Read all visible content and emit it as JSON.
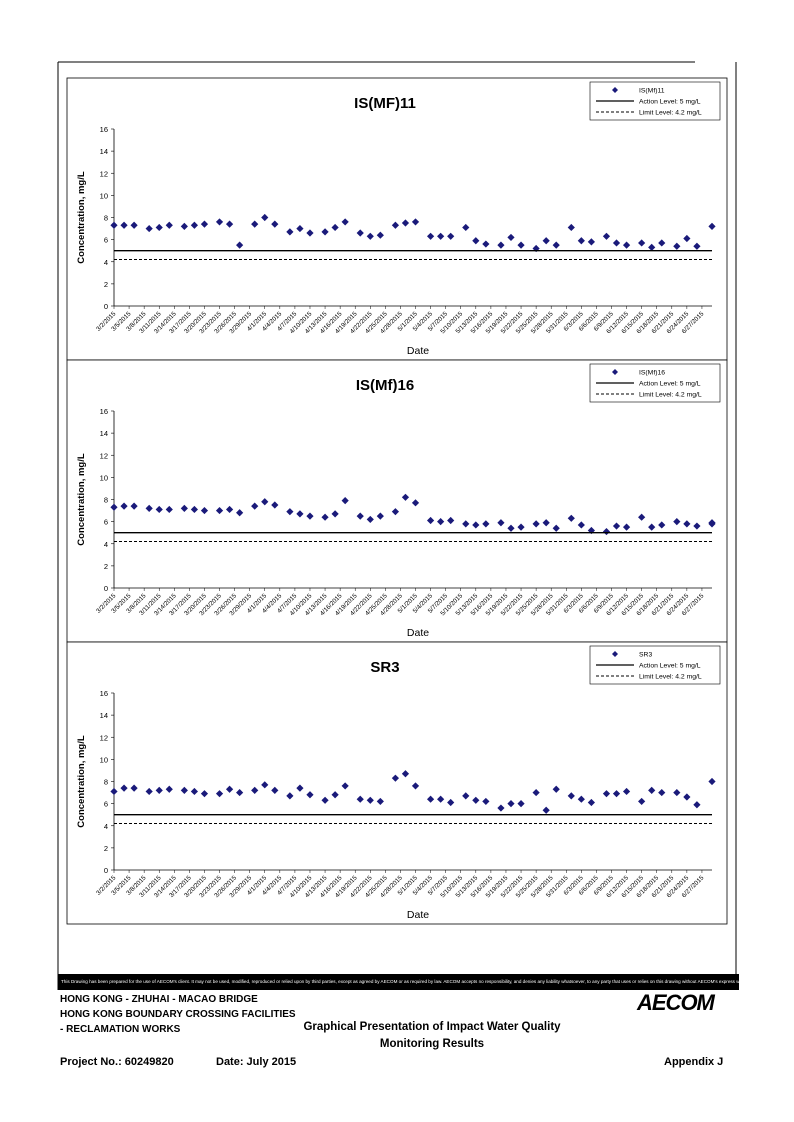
{
  "x_dates": [
    "3/2/2015",
    "3/5/2015",
    "3/8/2015",
    "3/11/2015",
    "3/14/2015",
    "3/17/2015",
    "3/20/2015",
    "3/23/2015",
    "3/26/2015",
    "3/29/2015",
    "4/1/2015",
    "4/4/2015",
    "4/7/2015",
    "4/10/2015",
    "4/13/2015",
    "4/16/2015",
    "4/19/2015",
    "4/22/2015",
    "4/25/2015",
    "4/28/2015",
    "5/1/2015",
    "5/4/2015",
    "5/7/2015",
    "5/10/2015",
    "5/13/2015",
    "5/16/2015",
    "5/19/2015",
    "5/22/2015",
    "5/25/2015",
    "5/28/2015",
    "5/31/2015",
    "6/3/2015",
    "6/6/2015",
    "6/9/2015",
    "6/12/2015",
    "6/15/2015",
    "6/18/2015",
    "6/21/2015",
    "6/24/2015",
    "6/27/2015"
  ],
  "colors": {
    "marker": "#1a1a7a",
    "line": "#000000"
  },
  "chart_data": [
    {
      "type": "scatter",
      "title": "IS(MF)11",
      "xlabel": "Date",
      "ylabel": "Concentration, mg/L",
      "ylim": [
        0,
        16
      ],
      "yticks": [
        0,
        2,
        4,
        6,
        8,
        10,
        12,
        14,
        16
      ],
      "xlim": [
        "3/2/2015",
        "6/29/2015"
      ],
      "legend_position": "top-right",
      "series": [
        {
          "name": "IS(Mf)11",
          "kind": "marker",
          "points": [
            [
              "3/2/2015",
              7.3
            ],
            [
              "3/4/2015",
              7.3
            ],
            [
              "3/6/2015",
              7.3
            ],
            [
              "3/9/2015",
              7.0
            ],
            [
              "3/11/2015",
              7.1
            ],
            [
              "3/13/2015",
              7.3
            ],
            [
              "3/16/2015",
              7.2
            ],
            [
              "3/18/2015",
              7.3
            ],
            [
              "3/20/2015",
              7.4
            ],
            [
              "3/23/2015",
              7.6
            ],
            [
              "3/25/2015",
              7.4
            ],
            [
              "3/27/2015",
              5.5
            ],
            [
              "3/30/2015",
              7.4
            ],
            [
              "4/1/2015",
              8.0
            ],
            [
              "4/3/2015",
              7.4
            ],
            [
              "4/6/2015",
              6.7
            ],
            [
              "4/8/2015",
              7.0
            ],
            [
              "4/10/2015",
              6.6
            ],
            [
              "4/13/2015",
              6.7
            ],
            [
              "4/15/2015",
              7.1
            ],
            [
              "4/17/2015",
              7.6
            ],
            [
              "4/20/2015",
              6.6
            ],
            [
              "4/22/2015",
              6.3
            ],
            [
              "4/24/2015",
              6.4
            ],
            [
              "4/27/2015",
              7.3
            ],
            [
              "4/29/2015",
              7.5
            ],
            [
              "5/1/2015",
              7.6
            ],
            [
              "5/4/2015",
              6.3
            ],
            [
              "5/6/2015",
              6.3
            ],
            [
              "5/8/2015",
              6.3
            ],
            [
              "5/11/2015",
              7.1
            ],
            [
              "5/13/2015",
              5.9
            ],
            [
              "5/15/2015",
              5.6
            ],
            [
              "5/18/2015",
              5.5
            ],
            [
              "5/20/2015",
              6.2
            ],
            [
              "5/22/2015",
              5.5
            ],
            [
              "5/25/2015",
              5.2
            ],
            [
              "5/27/2015",
              5.9
            ],
            [
              "5/29/2015",
              5.5
            ],
            [
              "6/1/2015",
              7.1
            ],
            [
              "6/3/2015",
              5.9
            ],
            [
              "6/5/2015",
              5.8
            ],
            [
              "6/8/2015",
              6.3
            ],
            [
              "6/10/2015",
              5.7
            ],
            [
              "6/12/2015",
              5.5
            ],
            [
              "6/15/2015",
              5.7
            ],
            [
              "6/17/2015",
              5.3
            ],
            [
              "6/19/2015",
              5.7
            ],
            [
              "6/22/2015",
              5.4
            ],
            [
              "6/24/2015",
              6.1
            ],
            [
              "6/26/2015",
              5.4
            ],
            [
              "6/29/2015",
              7.2
            ]
          ]
        },
        {
          "name": "Action Level: 5 mg/L",
          "kind": "hline",
          "y": 5
        },
        {
          "name": "Limit Level: 4.2 mg/L",
          "kind": "hline-dashed",
          "y": 4.2
        }
      ]
    },
    {
      "type": "scatter",
      "title": "IS(Mf)16",
      "xlabel": "Date",
      "ylabel": "Concentration, mg/L",
      "ylim": [
        0,
        16
      ],
      "yticks": [
        0,
        2,
        4,
        6,
        8,
        10,
        12,
        14,
        16
      ],
      "xlim": [
        "3/2/2015",
        "6/29/2015"
      ],
      "legend_position": "top-right",
      "series": [
        {
          "name": "IS(Mf)16",
          "kind": "marker",
          "points": [
            [
              "3/2/2015",
              7.3
            ],
            [
              "3/4/2015",
              7.4
            ],
            [
              "3/6/2015",
              7.4
            ],
            [
              "3/9/2015",
              7.2
            ],
            [
              "3/11/2015",
              7.1
            ],
            [
              "3/13/2015",
              7.1
            ],
            [
              "3/16/2015",
              7.2
            ],
            [
              "3/18/2015",
              7.1
            ],
            [
              "3/20/2015",
              7.0
            ],
            [
              "3/23/2015",
              7.0
            ],
            [
              "3/25/2015",
              7.1
            ],
            [
              "3/27/2015",
              6.8
            ],
            [
              "3/30/2015",
              7.4
            ],
            [
              "4/1/2015",
              7.8
            ],
            [
              "4/3/2015",
              7.5
            ],
            [
              "4/6/2015",
              6.9
            ],
            [
              "4/8/2015",
              6.7
            ],
            [
              "4/10/2015",
              6.5
            ],
            [
              "4/13/2015",
              6.4
            ],
            [
              "4/15/2015",
              6.7
            ],
            [
              "4/17/2015",
              7.9
            ],
            [
              "4/20/2015",
              6.5
            ],
            [
              "4/22/2015",
              6.2
            ],
            [
              "4/24/2015",
              6.5
            ],
            [
              "4/27/2015",
              6.9
            ],
            [
              "4/29/2015",
              8.2
            ],
            [
              "5/1/2015",
              7.7
            ],
            [
              "5/4/2015",
              6.1
            ],
            [
              "5/6/2015",
              6.0
            ],
            [
              "5/8/2015",
              6.1
            ],
            [
              "5/11/2015",
              5.8
            ],
            [
              "5/13/2015",
              5.7
            ],
            [
              "5/15/2015",
              5.8
            ],
            [
              "5/18/2015",
              5.9
            ],
            [
              "5/20/2015",
              5.4
            ],
            [
              "5/22/2015",
              5.5
            ],
            [
              "5/25/2015",
              5.8
            ],
            [
              "5/27/2015",
              5.9
            ],
            [
              "5/29/2015",
              5.4
            ],
            [
              "6/1/2015",
              6.3
            ],
            [
              "6/3/2015",
              5.7
            ],
            [
              "6/5/2015",
              5.2
            ],
            [
              "6/8/2015",
              5.1
            ],
            [
              "6/10/2015",
              5.6
            ],
            [
              "6/12/2015",
              5.5
            ],
            [
              "6/15/2015",
              6.4
            ],
            [
              "6/17/2015",
              5.5
            ],
            [
              "6/19/2015",
              5.7
            ],
            [
              "6/22/2015",
              6.0
            ],
            [
              "6/24/2015",
              5.8
            ],
            [
              "6/26/2015",
              5.6
            ],
            [
              "6/29/2015",
              5.8
            ],
            [
              "6/29/2015",
              5.9
            ]
          ]
        },
        {
          "name": "Action Level: 5 mg/L",
          "kind": "hline",
          "y": 5
        },
        {
          "name": "Limit Level: 4.2 mg/L",
          "kind": "hline-dashed",
          "y": 4.2
        }
      ]
    },
    {
      "type": "scatter",
      "title": "SR3",
      "xlabel": "Date",
      "ylabel": "Concentration, mg/L",
      "ylim": [
        0,
        16
      ],
      "yticks": [
        0,
        2,
        4,
        6,
        8,
        10,
        12,
        14,
        16
      ],
      "xlim": [
        "3/2/2015",
        "6/29/2015"
      ],
      "legend_position": "top-right",
      "series": [
        {
          "name": "SR3",
          "kind": "marker",
          "points": [
            [
              "3/2/2015",
              7.1
            ],
            [
              "3/4/2015",
              7.4
            ],
            [
              "3/6/2015",
              7.4
            ],
            [
              "3/9/2015",
              7.1
            ],
            [
              "3/11/2015",
              7.2
            ],
            [
              "3/13/2015",
              7.3
            ],
            [
              "3/16/2015",
              7.2
            ],
            [
              "3/18/2015",
              7.1
            ],
            [
              "3/20/2015",
              6.9
            ],
            [
              "3/23/2015",
              6.9
            ],
            [
              "3/25/2015",
              7.3
            ],
            [
              "3/27/2015",
              7.0
            ],
            [
              "3/30/2015",
              7.2
            ],
            [
              "4/1/2015",
              7.7
            ],
            [
              "4/3/2015",
              7.2
            ],
            [
              "4/6/2015",
              6.7
            ],
            [
              "4/8/2015",
              7.4
            ],
            [
              "4/10/2015",
              6.8
            ],
            [
              "4/13/2015",
              6.3
            ],
            [
              "4/15/2015",
              6.8
            ],
            [
              "4/17/2015",
              7.6
            ],
            [
              "4/20/2015",
              6.4
            ],
            [
              "4/22/2015",
              6.3
            ],
            [
              "4/24/2015",
              6.2
            ],
            [
              "4/27/2015",
              8.3
            ],
            [
              "4/29/2015",
              8.7
            ],
            [
              "5/1/2015",
              7.6
            ],
            [
              "5/4/2015",
              6.4
            ],
            [
              "5/6/2015",
              6.4
            ],
            [
              "5/8/2015",
              6.1
            ],
            [
              "5/11/2015",
              6.7
            ],
            [
              "5/13/2015",
              6.3
            ],
            [
              "5/15/2015",
              6.2
            ],
            [
              "5/18/2015",
              5.6
            ],
            [
              "5/20/2015",
              6.0
            ],
            [
              "5/22/2015",
              6.0
            ],
            [
              "5/25/2015",
              7.0
            ],
            [
              "5/27/2015",
              5.4
            ],
            [
              "5/29/2015",
              7.3
            ],
            [
              "6/1/2015",
              6.7
            ],
            [
              "6/3/2015",
              6.4
            ],
            [
              "6/5/2015",
              6.1
            ],
            [
              "6/8/2015",
              6.9
            ],
            [
              "6/10/2015",
              6.9
            ],
            [
              "6/12/2015",
              7.1
            ],
            [
              "6/15/2015",
              6.2
            ],
            [
              "6/17/2015",
              7.2
            ],
            [
              "6/19/2015",
              7.0
            ],
            [
              "6/22/2015",
              7.0
            ],
            [
              "6/24/2015",
              6.6
            ],
            [
              "6/26/2015",
              5.9
            ],
            [
              "6/29/2015",
              8.0
            ]
          ]
        },
        {
          "name": "Action Level: 5 mg/L",
          "kind": "hline",
          "y": 5
        },
        {
          "name": "Limit Level: 4.2 mg/L",
          "kind": "hline-dashed",
          "y": 4.2
        }
      ]
    }
  ],
  "footer": {
    "disclaimer": "This Drawing has been prepared for the use of AECOM's client. It may not be used, modified, reproduced or relied upon by third parties, except as agreed by AECOM or as required by law. AECOM accepts no responsibility, and denies any liability whatsoever, to any party that uses or relies on this drawing without AECOM's express written consent.",
    "line1": "HONG KONG - ZHUHAI - MACAO BRIDGE",
    "line2": "HONG KONG BOUNDARY CROSSING FACILITIES",
    "line3": "- RECLAMATION WORKS",
    "title_line1": "Graphical Presentation of Impact Water Quality",
    "title_line2": "Monitoring Results",
    "project": "Project No.: 60249820",
    "date": "Date: July 2015",
    "appendix": "Appendix J",
    "logo": "AECOM"
  }
}
